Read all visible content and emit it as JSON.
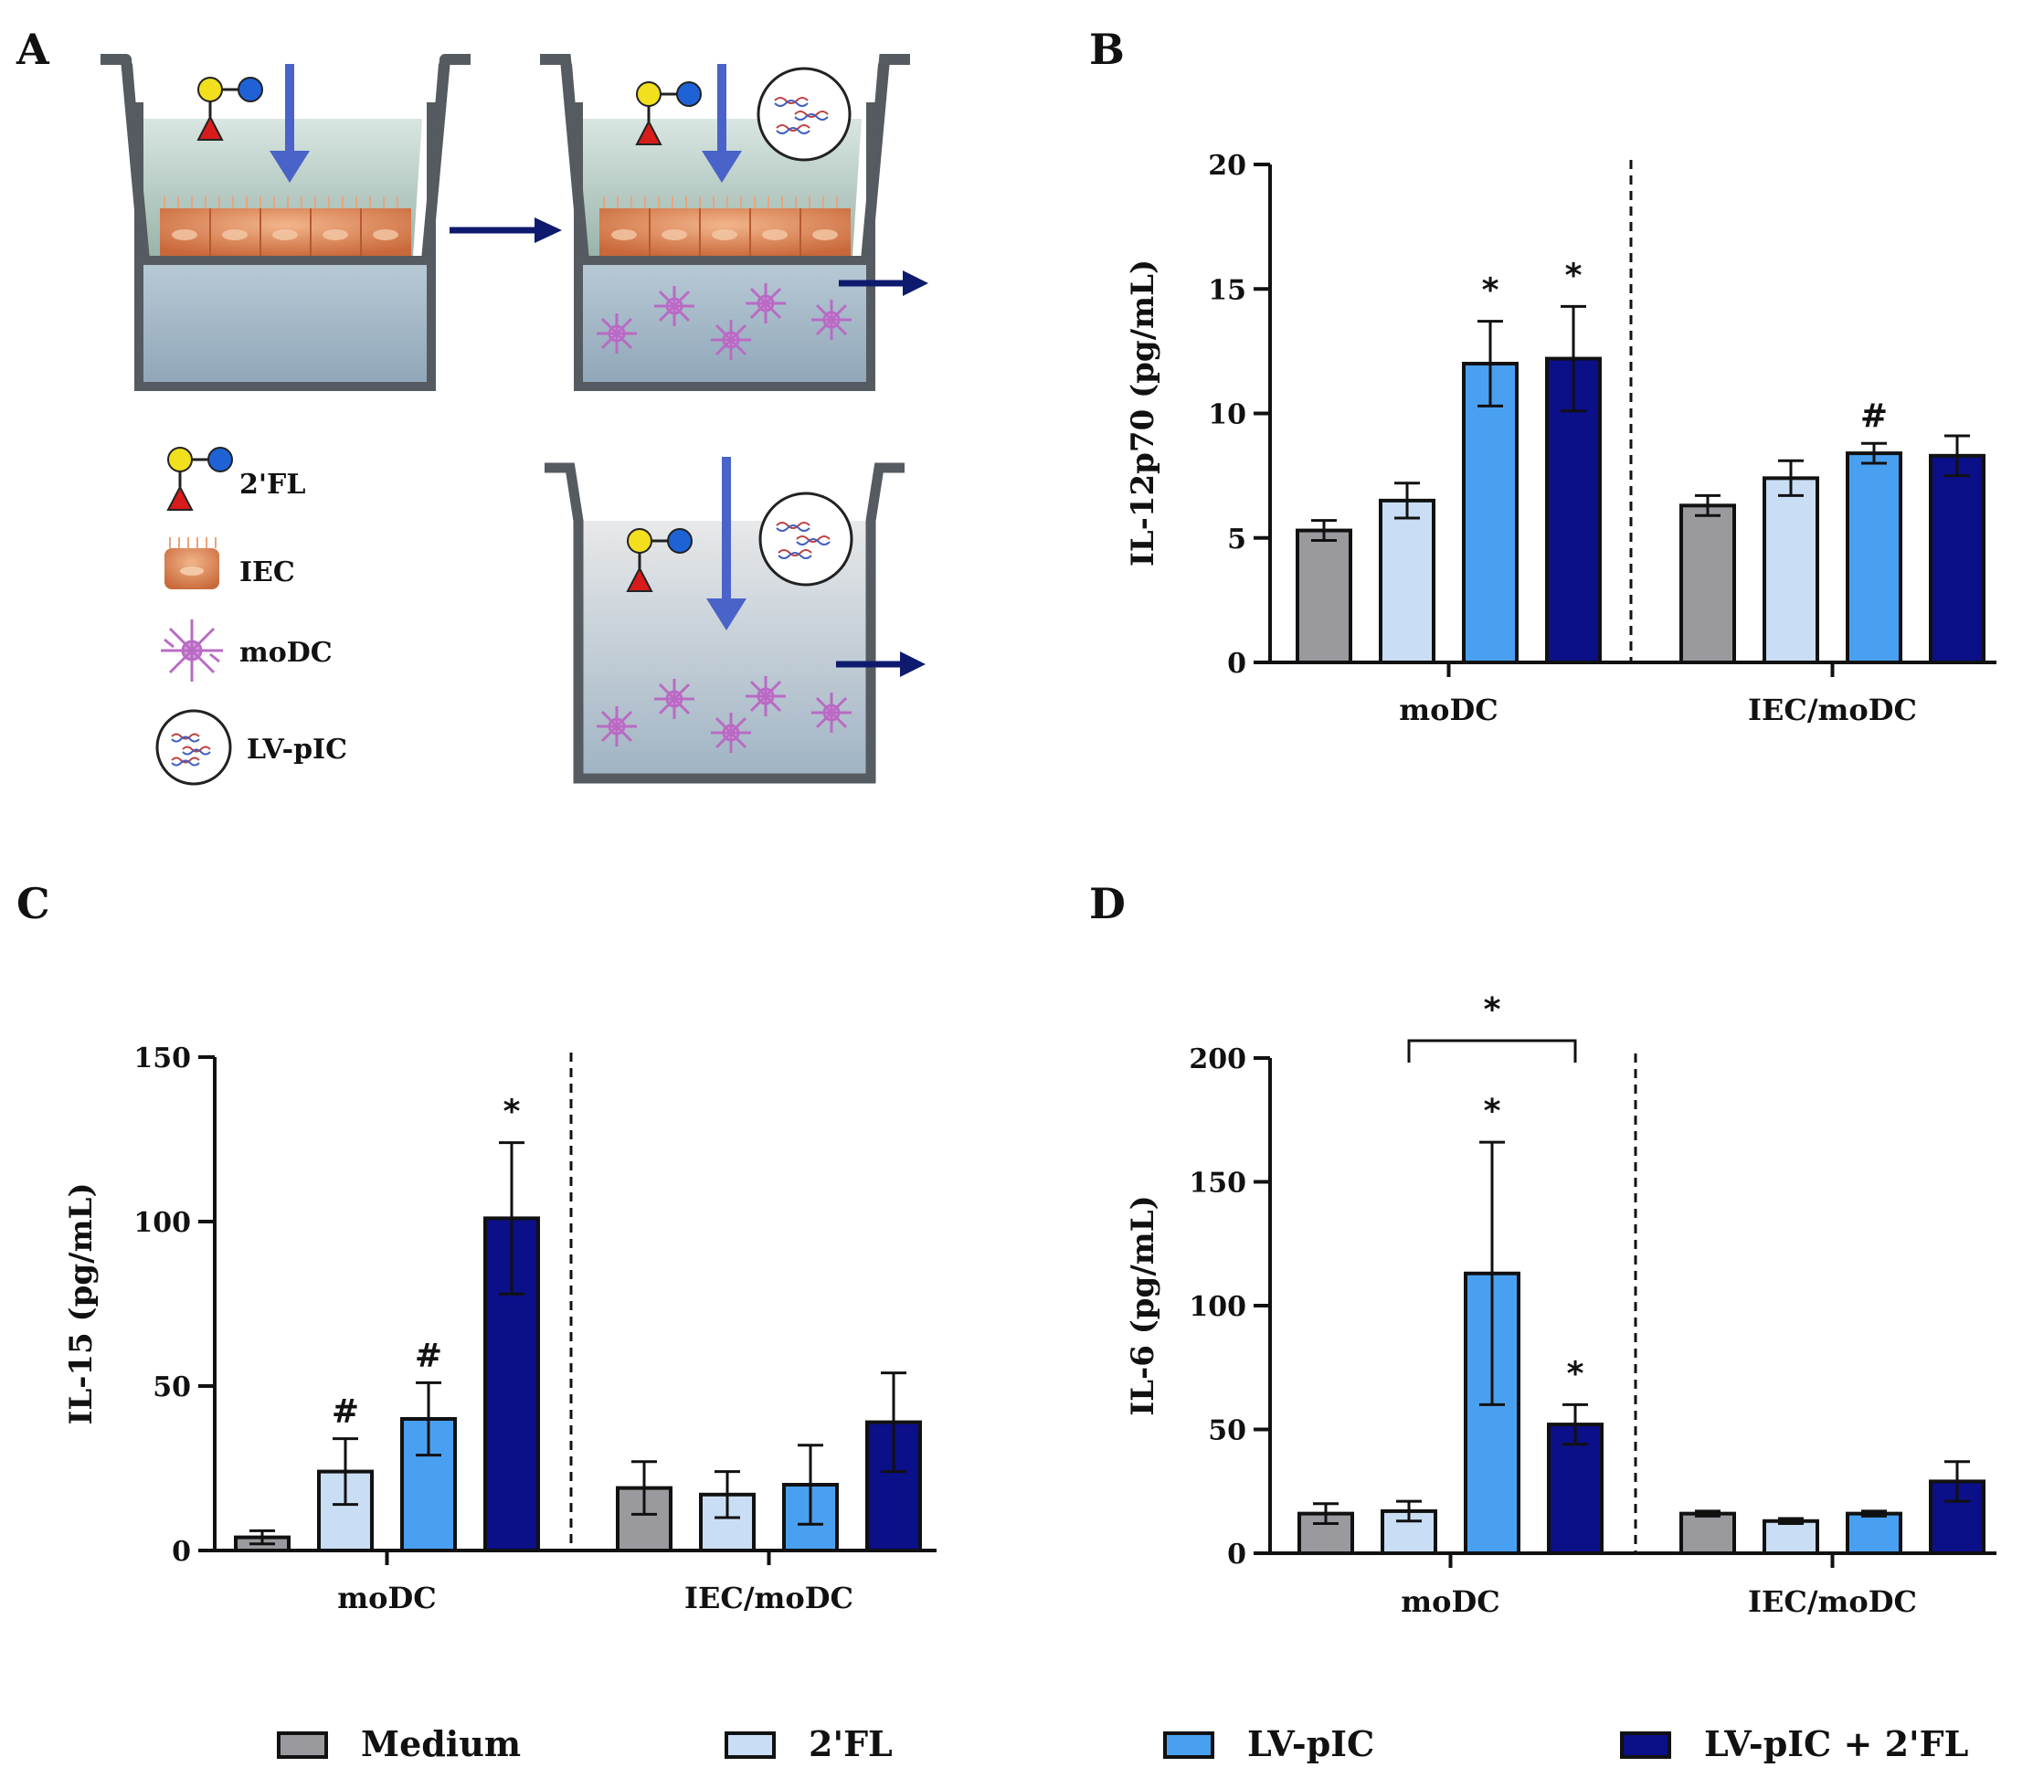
{
  "panels": {
    "a": "A",
    "b": "B",
    "c": "C",
    "d": "D"
  },
  "colors": {
    "medium": "#9a9a9e",
    "fl": "#c9def5",
    "lvpic": "#4aa0f0",
    "lvpic_fl": "#0b0f88",
    "arrow_blue": "#4a63c8",
    "arrow_navy": "#0d1a6e",
    "cell": "#d98a5c",
    "moDC": "#b96bc4",
    "fl_yellow": "#f2df1d",
    "fl_blue": "#1e62d6",
    "fl_red": "#d81b1b"
  },
  "schematic_legend": [
    {
      "icon": "hmo-2fl-icon",
      "label": "2'FL"
    },
    {
      "icon": "iec-cells-icon",
      "label": "IEC"
    },
    {
      "icon": "modc-cell-icon",
      "label": "moDC"
    },
    {
      "icon": "lv-pic-vesicle-icon",
      "label": "LV-pIC"
    }
  ],
  "chart_data": [
    {
      "panel": "B",
      "type": "bar",
      "ylabel": "IL-12p70 (pg/mL)",
      "ylim": [
        0,
        20
      ],
      "yticks": [
        0,
        5,
        10,
        15,
        20
      ],
      "categories": [
        "moDC",
        "IEC/moDC"
      ],
      "series": [
        {
          "name": "Medium",
          "values": [
            5.3,
            6.3
          ],
          "errors": [
            0.4,
            0.4
          ]
        },
        {
          "name": "2'FL",
          "values": [
            6.5,
            7.4
          ],
          "errors": [
            0.7,
            0.7
          ]
        },
        {
          "name": "LV-pIC",
          "values": [
            12.0,
            8.4
          ],
          "errors": [
            1.7,
            0.4
          ]
        },
        {
          "name": "LV-pIC + 2'FL",
          "values": [
            12.2,
            8.3
          ],
          "errors": [
            2.1,
            0.8
          ]
        }
      ],
      "annotations": [
        {
          "category": "moDC",
          "series": "LV-pIC",
          "text": "*"
        },
        {
          "category": "moDC",
          "series": "LV-pIC + 2'FL",
          "text": "*"
        },
        {
          "category": "IEC/moDC",
          "series": "LV-pIC",
          "text": "#"
        }
      ]
    },
    {
      "panel": "C",
      "type": "bar",
      "ylabel": "IL-15 (pg/mL)",
      "ylim": [
        0,
        150
      ],
      "yticks": [
        0,
        50,
        100,
        150
      ],
      "categories": [
        "moDC",
        "IEC/moDC"
      ],
      "series": [
        {
          "name": "Medium",
          "values": [
            4,
            19
          ],
          "errors": [
            2,
            8
          ]
        },
        {
          "name": "2'FL",
          "values": [
            24,
            17
          ],
          "errors": [
            10,
            7
          ]
        },
        {
          "name": "LV-pIC",
          "values": [
            40,
            20
          ],
          "errors": [
            11,
            12
          ]
        },
        {
          "name": "LV-pIC + 2'FL",
          "values": [
            101,
            39
          ],
          "errors": [
            23,
            15
          ]
        }
      ],
      "annotations": [
        {
          "category": "moDC",
          "series": "2'FL",
          "text": "#"
        },
        {
          "category": "moDC",
          "series": "LV-pIC",
          "text": "#"
        },
        {
          "category": "moDC",
          "series": "LV-pIC + 2'FL",
          "text": "*"
        }
      ]
    },
    {
      "panel": "D",
      "type": "bar",
      "ylabel": "IL-6 (pg/mL)",
      "ylim": [
        0,
        200
      ],
      "yticks": [
        0,
        50,
        100,
        150,
        200
      ],
      "categories": [
        "moDC",
        "IEC/moDC"
      ],
      "series": [
        {
          "name": "Medium",
          "values": [
            16,
            16
          ],
          "errors": [
            4,
            1
          ]
        },
        {
          "name": "2'FL",
          "values": [
            17,
            13
          ],
          "errors": [
            4,
            1
          ]
        },
        {
          "name": "LV-pIC",
          "values": [
            113,
            16
          ],
          "errors": [
            53,
            1
          ]
        },
        {
          "name": "LV-pIC + 2'FL",
          "values": [
            52,
            29
          ],
          "errors": [
            8,
            8
          ]
        }
      ],
      "annotations": [
        {
          "category": "moDC",
          "series": "LV-pIC",
          "text": "*"
        },
        {
          "category": "moDC",
          "series": "LV-pIC + 2'FL",
          "text": "*"
        }
      ],
      "brackets": [
        {
          "from_series": "2'FL",
          "to_series": "LV-pIC + 2'FL",
          "category": "moDC",
          "y": 207,
          "text": "*"
        }
      ]
    }
  ],
  "legend": {
    "placement": "bottom",
    "items": [
      {
        "label": "Medium",
        "color_key": "medium"
      },
      {
        "label": "2'FL",
        "color_key": "fl"
      },
      {
        "label": "LV-pIC",
        "color_key": "lvpic"
      },
      {
        "label": "LV-pIC + 2'FL",
        "color_key": "lvpic_fl"
      }
    ]
  }
}
